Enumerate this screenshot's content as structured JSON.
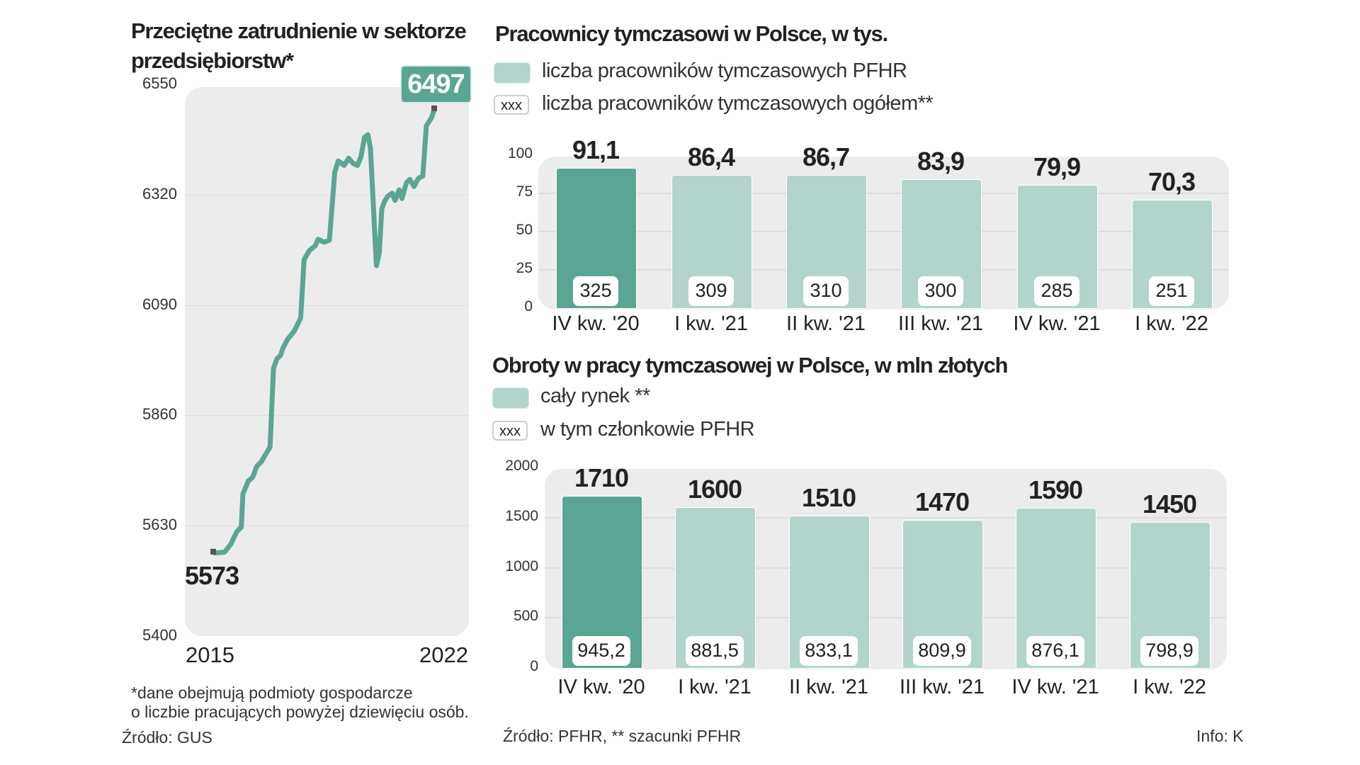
{
  "colors": {
    "highlight": "#5ba595",
    "bar": "#b3d4cc",
    "panel": "#ececec",
    "line": "#5ba595"
  },
  "left": {
    "title_line1": "Przeciętne zatrudnienie w sektorze",
    "title_line2": "przedsiębiorstw*",
    "footnote_line1": "*dane obejmują podmioty gospodarcze",
    "footnote_line2": "o liczbie pracujących powyżej dziewięciu osób.",
    "source": "Źródło: GUS"
  },
  "right": {
    "source": "Źródło: PFHR, ** szacunki PFHR",
    "info": "Info: K"
  },
  "chart_data": [
    {
      "type": "line",
      "title": "Przeciętne zatrudnienie w sektorze przedsiębiorstw*",
      "xlabel": "",
      "ylabel": "",
      "ylim": [
        5400,
        6550
      ],
      "xlim": [
        2015,
        2022
      ],
      "yticks": [
        "6550",
        "6320",
        "6090",
        "5860",
        "5630",
        "5400"
      ],
      "ytick_values": [
        6550,
        6320,
        6090,
        5860,
        5630,
        5400
      ],
      "xticks": [
        "2015",
        "2022"
      ],
      "start_label": "5573",
      "end_label": "6497",
      "x": [
        2015.0,
        2015.36,
        2015.55,
        2015.75,
        2015.89,
        2015.94,
        2016.11,
        2016.25,
        2016.38,
        2016.52,
        2016.8,
        2016.91,
        2017.02,
        2017.13,
        2017.21,
        2017.35,
        2017.57,
        2017.77,
        2017.88,
        2018.04,
        2018.24,
        2018.32,
        2018.51,
        2018.68,
        2018.85,
        2018.96,
        2019.15,
        2019.29,
        2019.43,
        2019.57,
        2019.68,
        2019.79,
        2019.9,
        2019.98,
        2020.17,
        2020.26,
        2020.34,
        2020.42,
        2020.53,
        2020.67,
        2020.76,
        2020.89,
        2020.98,
        2021.12,
        2021.23,
        2021.36,
        2021.5,
        2021.64,
        2021.75,
        2021.92,
        2022.0
      ],
      "y": [
        5573,
        5575,
        5591,
        5618,
        5627,
        5696,
        5723,
        5731,
        5754,
        5763,
        5794,
        5958,
        5978,
        5985,
        6000,
        6018,
        6036,
        6063,
        6185,
        6203,
        6214,
        6227,
        6221,
        6225,
        6367,
        6390,
        6381,
        6396,
        6385,
        6381,
        6399,
        6439,
        6445,
        6417,
        6172,
        6199,
        6290,
        6305,
        6317,
        6323,
        6308,
        6330,
        6312,
        6345,
        6352,
        6337,
        6354,
        6359,
        6463,
        6481,
        6497
      ]
    },
    {
      "type": "bar",
      "title": "Pracownicy tymczasowi w Polsce, w tys.",
      "legend": [
        "liczba pracowników tymczasowych PFHR",
        "liczba pracowników tymczasowych ogółem**"
      ],
      "legend_sample": "xxx",
      "categories": [
        "IV kw. '20",
        "I kw. '21",
        "II kw. '21",
        "III kw. '21",
        "IV kw. '21",
        "I kw. '22"
      ],
      "values": [
        91.1,
        86.4,
        86.7,
        83.9,
        79.9,
        70.3
      ],
      "value_labels": [
        "91,1",
        "86,4",
        "86,7",
        "83,9",
        "79,9",
        "70,3"
      ],
      "totals": [
        "325",
        "309",
        "310",
        "300",
        "285",
        "251"
      ],
      "ylim": [
        0,
        100
      ],
      "yticks": [
        "100",
        "75",
        "50",
        "25",
        "0"
      ],
      "ytick_values": [
        100,
        75,
        50,
        25,
        0
      ]
    },
    {
      "type": "bar",
      "title": "Obroty w pracy tymczasowej w Polsce, w mln złotych",
      "legend": [
        "cały rynek **",
        "w tym członkowie PFHR"
      ],
      "legend_sample": "xxx",
      "categories": [
        "IV kw. '20",
        "I kw. '21",
        "II kw. '21",
        "III kw. '21",
        "IV kw. '21",
        "I kw. '22"
      ],
      "values": [
        1710,
        1600,
        1510,
        1470,
        1590,
        1450
      ],
      "value_labels": [
        "1710",
        "1600",
        "1510",
        "1470",
        "1590",
        "1450"
      ],
      "totals": [
        "945,2",
        "881,5",
        "833,1",
        "809,9",
        "876,1",
        "798,9"
      ],
      "ylim": [
        0,
        2000
      ],
      "yticks": [
        "2000",
        "1500",
        "1000",
        "500",
        "0"
      ],
      "ytick_values": [
        2000,
        1500,
        1000,
        500,
        0
      ]
    }
  ]
}
